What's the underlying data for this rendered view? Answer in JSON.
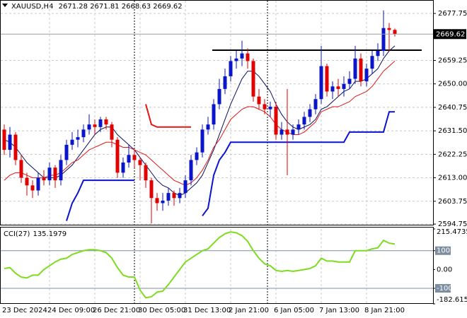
{
  "chart_data": {
    "type": "candlestick",
    "symbol": "XAUUSD,H4",
    "up_color": "#0a14c8",
    "down_color": "#e00000",
    "grid": true,
    "categories": [
      "23 Dec 2024",
      null,
      null,
      null,
      null,
      null,
      null,
      null,
      "24 Dec 09:00",
      null,
      null,
      null,
      null,
      null,
      null,
      null,
      "26 Dec 21:00",
      null,
      null,
      null,
      null,
      null,
      null,
      null,
      "30 Dec 05:00",
      null,
      null,
      null,
      null,
      null,
      null,
      null,
      "31 Dec 13:00",
      null,
      null,
      null,
      null,
      null,
      null,
      null,
      "2 Jan 21:00",
      null,
      null,
      null,
      null,
      null,
      null,
      null,
      "6 Jan 05:00",
      null,
      null,
      null,
      null,
      null,
      null,
      null,
      "7 Jan 13:00",
      null,
      null,
      null,
      null,
      null,
      null,
      null,
      "8 Jan 21:00",
      null,
      null,
      null,
      null,
      null
    ],
    "open": [
      2632,
      2624,
      2630,
      2620,
      2613,
      2610,
      2608,
      2613,
      2612,
      2617,
      2612,
      2620,
      2626,
      2628,
      2629,
      2632,
      2634,
      2633,
      2636,
      2634,
      2628,
      2615,
      2619,
      2622,
      2620,
      2618,
      2612,
      2605,
      2603,
      2604,
      2607,
      2605,
      2607,
      2612,
      2620,
      2623,
      2632,
      2634,
      2642,
      2648,
      2653,
      2659,
      2660,
      2662,
      2659,
      2645,
      2642,
      2640,
      2641,
      2630,
      2632,
      2630,
      2632,
      2634,
      2637,
      2640,
      2644,
      2657,
      2647,
      2649,
      2648,
      2650,
      2652,
      2660,
      2651,
      2656,
      2661,
      2663,
      2672,
      2671.28
    ],
    "high": [
      2634,
      2633,
      2631,
      2622,
      2615,
      2612,
      2615,
      2616,
      2619,
      2618,
      2622,
      2628,
      2631,
      2632,
      2634,
      2638,
      2636,
      2637,
      2637,
      2635,
      2629,
      2621,
      2626,
      2624,
      2621,
      2619,
      2613,
      2607,
      2607,
      2609,
      2608,
      2609,
      2614,
      2622,
      2625,
      2634,
      2637,
      2644,
      2652,
      2656,
      2661,
      2663,
      2667,
      2664,
      2660,
      2648,
      2644,
      2643,
      2643,
      2635,
      2648,
      2634,
      2636,
      2639,
      2642,
      2646,
      2665,
      2658,
      2651,
      2652,
      2653,
      2655,
      2665,
      2662,
      2658,
      2663,
      2666,
      2679,
      2674,
      2671.81
    ],
    "low": [
      2622,
      2621,
      2618,
      2611,
      2606,
      2605,
      2606,
      2610,
      2610,
      2609,
      2610,
      2618,
      2624,
      2625,
      2627,
      2630,
      2630,
      2631,
      2632,
      2625,
      2613,
      2613,
      2617,
      2617,
      2612,
      2609,
      2595,
      2600,
      2600,
      2602,
      2602,
      2603,
      2605,
      2610,
      2618,
      2621,
      2630,
      2632,
      2640,
      2646,
      2651,
      2656,
      2657,
      2656,
      2643,
      2640,
      2638,
      2637,
      2628,
      2628,
      2614,
      2628,
      2630,
      2632,
      2635,
      2638,
      2642,
      2645,
      2644,
      2645,
      2645,
      2648,
      2650,
      2649,
      2649,
      2654,
      2659,
      2661,
      2663,
      2668.63
    ],
    "close": [
      2624,
      2630,
      2620,
      2613,
      2610,
      2608,
      2613,
      2612,
      2617,
      2612,
      2620,
      2626,
      2628,
      2629,
      2632,
      2634,
      2633,
      2636,
      2634,
      2628,
      2615,
      2619,
      2622,
      2620,
      2618,
      2612,
      2605,
      2603,
      2604,
      2607,
      2605,
      2607,
      2612,
      2620,
      2623,
      2632,
      2634,
      2642,
      2648,
      2653,
      2659,
      2660,
      2662,
      2659,
      2645,
      2642,
      2640,
      2641,
      2630,
      2632,
      2630,
      2632,
      2634,
      2637,
      2640,
      2644,
      2657,
      2647,
      2649,
      2648,
      2650,
      2652,
      2660,
      2651,
      2656,
      2661,
      2663,
      2672,
      2671.28,
      2669.62
    ],
    "overlays": [
      {
        "color": "#0a1060",
        "width": 1,
        "values": [
          2628,
          2627,
          2625,
          2622,
          2619,
          2617,
          2615,
          2613,
          2613,
          2613,
          2614,
          2616,
          2618,
          2621,
          2624,
          2627,
          2630,
          2632,
          2633,
          2633,
          2630,
          2628,
          2626,
          2624,
          2621,
          2618,
          2615,
          2612,
          2610,
          2609,
          2607,
          2606,
          2607,
          2609,
          2611,
          2614,
          2619,
          2624,
          2630,
          2636,
          2642,
          2647,
          2652,
          2655,
          2655,
          2653,
          2650,
          2647,
          2642,
          2638,
          2635,
          2633,
          2632,
          2633,
          2634,
          2636,
          2640,
          2641,
          2643,
          2645,
          2647,
          2648,
          2651,
          2651,
          2652,
          2654,
          2656,
          2660,
          2663,
          2665
        ]
      },
      {
        "color": "#e01818",
        "width": 1,
        "values": [
          2612,
          2614,
          2615,
          2615,
          2614,
          2613,
          2613,
          2613,
          2614,
          2614,
          2615,
          2617,
          2619,
          2620,
          2622,
          2624,
          2625,
          2626,
          2627,
          2627,
          2626,
          2625,
          2625,
          2624,
          2623,
          2622,
          2620,
          2618,
          2616,
          2614,
          2612,
          2611,
          2610,
          2611,
          2613,
          2616,
          2620,
          2625,
          2628,
          2632,
          2636,
          2638,
          2640,
          2641,
          2641,
          2640,
          2639,
          2637,
          2634,
          2632,
          2631,
          2630,
          2630,
          2631,
          2633,
          2635,
          2639,
          2640,
          2641,
          2641,
          2642,
          2643,
          2645,
          2646,
          2647,
          2649,
          2652,
          2655,
          2657,
          2659
        ]
      },
      {
        "color": "#0a14d0",
        "width": 2,
        "values": [
          null,
          null,
          null,
          null,
          null,
          null,
          null,
          null,
          null,
          null,
          null,
          2596,
          2603,
          2607,
          2612,
          2612,
          2612,
          2612,
          2612,
          2612,
          2612,
          2612,
          2612,
          2612,
          null,
          null,
          null,
          null,
          null,
          null,
          null,
          null,
          null,
          null,
          null,
          2598,
          2601,
          2614,
          2620,
          2623,
          2627,
          2627,
          2627,
          2627,
          2627,
          2627,
          2627,
          2627,
          2627,
          2627,
          2627,
          2627,
          2627,
          2627,
          2627,
          2627,
          2627,
          2627,
          2627,
          2627,
          2627,
          2631,
          2631,
          2631,
          2631,
          2631,
          2631,
          2631,
          2639,
          2639
        ]
      },
      {
        "color": "#e01818",
        "width": 2,
        "values": [
          null,
          null,
          null,
          null,
          null,
          null,
          null,
          null,
          null,
          null,
          null,
          null,
          null,
          null,
          null,
          null,
          null,
          null,
          null,
          null,
          null,
          null,
          null,
          null,
          null,
          2642,
          2634,
          2633,
          2633,
          2633,
          2633,
          2633,
          2633,
          2633,
          null,
          null,
          null,
          null,
          null,
          null,
          null,
          null,
          null,
          null,
          null,
          null,
          null,
          null,
          null,
          null,
          null,
          null,
          null,
          null,
          null,
          null,
          null,
          null,
          null,
          null,
          null,
          null,
          null,
          null,
          null,
          null,
          null,
          null,
          null,
          null
        ]
      }
    ],
    "level": 2663.3,
    "ylim": [
      2594.5,
      2682.5
    ],
    "yticks": [
      2677.75,
      2659.25,
      {
        "value": 2650,
        "label": "2650.00"
      },
      2640.75,
      {
        "value": 2631.5,
        "label": "2631.50"
      },
      2622.25,
      {
        "value": 2613,
        "label": "2613.00"
      },
      2603.75,
      2594.75
    ],
    "cci": {
      "title": "CCI(27)",
      "color": "#7ddc1f",
      "values": [
        5,
        10,
        -20,
        -40,
        -45,
        -30,
        -30,
        0,
        20,
        40,
        55,
        60,
        80,
        90,
        100,
        105,
        105,
        100,
        90,
        60,
        10,
        -30,
        -40,
        -40,
        -110,
        -150,
        -145,
        -120,
        -115,
        -80,
        -40,
        0,
        40,
        60,
        80,
        100,
        110,
        140,
        170,
        190,
        200,
        195,
        180,
        150,
        100,
        60,
        30,
        20,
        -5,
        -10,
        -5,
        -10,
        -5,
        0,
        5,
        20,
        60,
        45,
        45,
        40,
        40,
        40,
        100,
        100,
        100,
        110,
        115,
        155,
        140,
        135.1979
      ],
      "ylim": [
        -182.6154,
        215.4735
      ],
      "yticks": [
        215.4735,
        100,
        {
          "value": 0,
          "label": "0.00"
        },
        -100,
        -182.6154
      ]
    }
  }
}
